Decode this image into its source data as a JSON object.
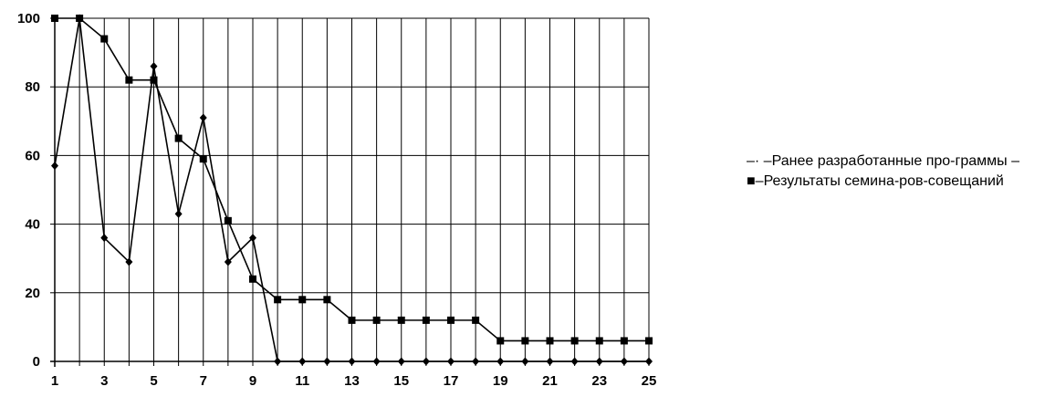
{
  "chart_data": {
    "type": "line",
    "title": "",
    "xlabel": "",
    "ylabel": "",
    "x": [
      1,
      2,
      3,
      4,
      5,
      6,
      7,
      8,
      9,
      10,
      11,
      12,
      13,
      14,
      15,
      16,
      17,
      18,
      19,
      20,
      21,
      22,
      23,
      24,
      25
    ],
    "x_ticks": [
      1,
      3,
      5,
      7,
      9,
      11,
      13,
      15,
      17,
      19,
      21,
      23,
      25
    ],
    "y_ticks": [
      0,
      20,
      40,
      60,
      80,
      100
    ],
    "ylim": [
      0,
      100
    ],
    "xlim": [
      1,
      25
    ],
    "grid": true,
    "legend_position": "right",
    "legend_text": "–· –Ранее разработанные про-граммы –■–Результаты семина-ров-совещаний",
    "series": [
      {
        "marker": "diamond",
        "values": [
          57,
          100,
          36,
          29,
          86,
          43,
          71,
          29,
          36,
          0,
          0,
          0,
          0,
          0,
          0,
          0,
          0,
          0,
          0,
          0,
          0,
          0,
          0,
          0,
          0
        ]
      },
      {
        "marker": "square",
        "values": [
          100,
          100,
          94,
          82,
          82,
          65,
          59,
          41,
          24,
          18,
          18,
          18,
          12,
          12,
          12,
          12,
          12,
          12,
          6,
          6,
          6,
          6,
          6,
          6,
          6
        ]
      }
    ],
    "colors": {
      "line": "#000000",
      "grid": "#000000"
    }
  }
}
